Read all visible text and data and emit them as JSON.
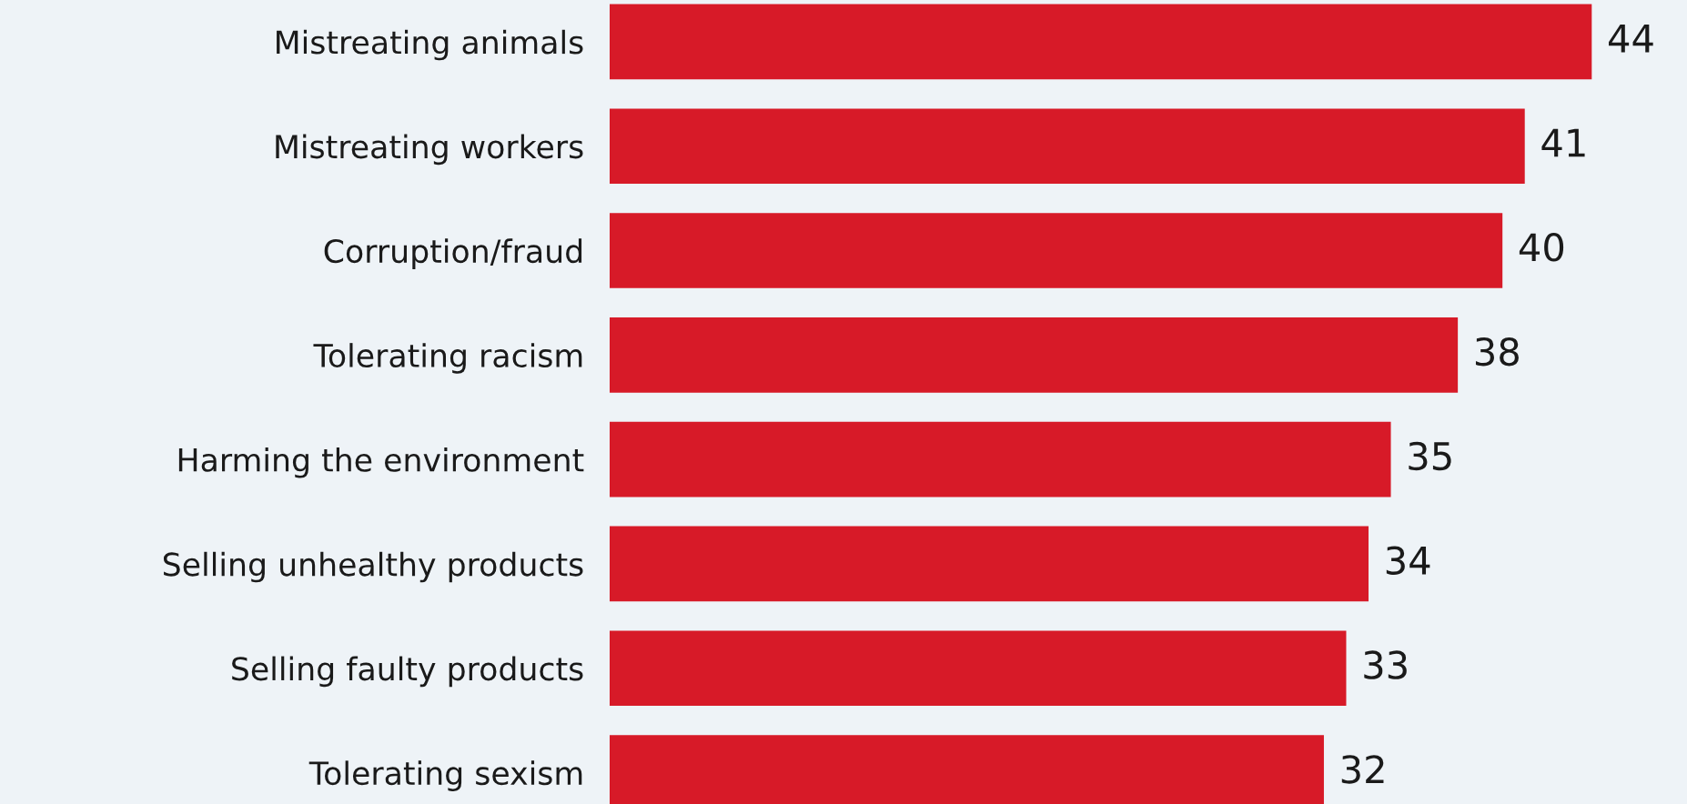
{
  "chart_data": {
    "type": "bar",
    "orientation": "horizontal",
    "categories": [
      "Mistreating animals",
      "Mistreating workers",
      "Corruption/fraud",
      "Tolerating racism",
      "Harming the environment",
      "Selling unhealthy products",
      "Selling faulty products",
      "Tolerating sexism"
    ],
    "values": [
      44,
      41,
      40,
      38,
      35,
      34,
      33,
      32
    ],
    "color": "#d71a28",
    "data_labels": true,
    "grid": false,
    "legend": false
  }
}
